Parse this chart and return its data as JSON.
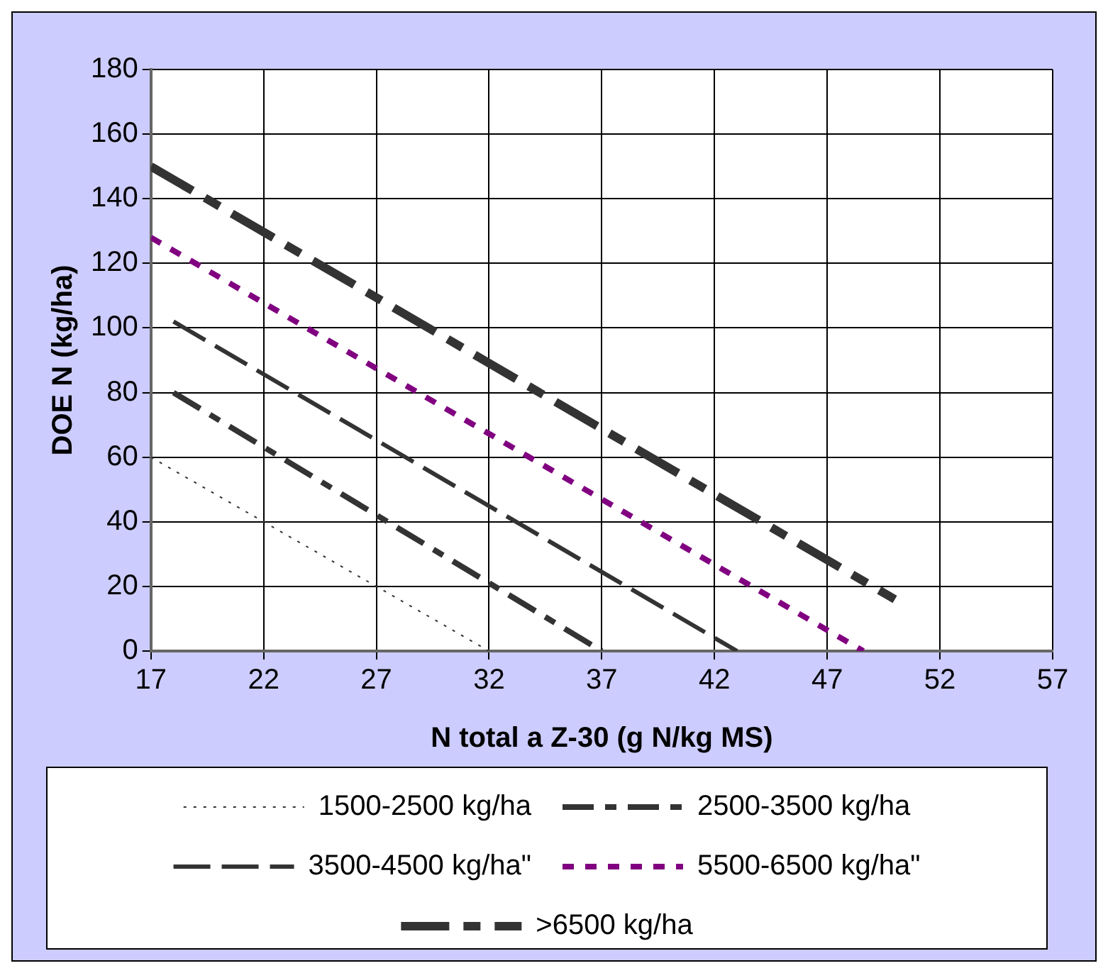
{
  "chart_data": {
    "type": "line",
    "xlabel": "N total a Z-30 (g N/kg MS)",
    "ylabel": "DOE N (kg/ha)",
    "xlim": [
      17,
      57
    ],
    "xticks": [
      17,
      22,
      27,
      32,
      37,
      42,
      47,
      52,
      57
    ],
    "ylim": [
      0,
      180
    ],
    "yticks": [
      0,
      20,
      40,
      60,
      80,
      100,
      120,
      140,
      160,
      180
    ],
    "grid": true,
    "legend": "bottom",
    "marker": "none",
    "series": [
      {
        "name": "1500-2500 kg/ha",
        "color": "#333333",
        "line_style": "dotted",
        "x": [
          17,
          32
        ],
        "values": [
          60,
          0
        ]
      },
      {
        "name": "2500-3500 kg/ha",
        "color": "#333333",
        "line_style": "dashed",
        "x": [
          18,
          37
        ],
        "values": [
          80,
          0
        ]
      },
      {
        "name": "3500-4500 kg/ha\"",
        "color": "#333333",
        "line_style": "dashed",
        "x": [
          18,
          43
        ],
        "values": [
          102,
          0
        ]
      },
      {
        "name": "5500-6500 kg/ha\"",
        "color": "#800080",
        "line_style": "dotted",
        "x": [
          17,
          48.6
        ],
        "values": [
          128,
          0
        ]
      },
      {
        "name": ">6500 kg/ha",
        "color": "#333333",
        "line_style": "dashed",
        "x": [
          17,
          50
        ],
        "values": [
          150,
          16
        ]
      }
    ]
  }
}
